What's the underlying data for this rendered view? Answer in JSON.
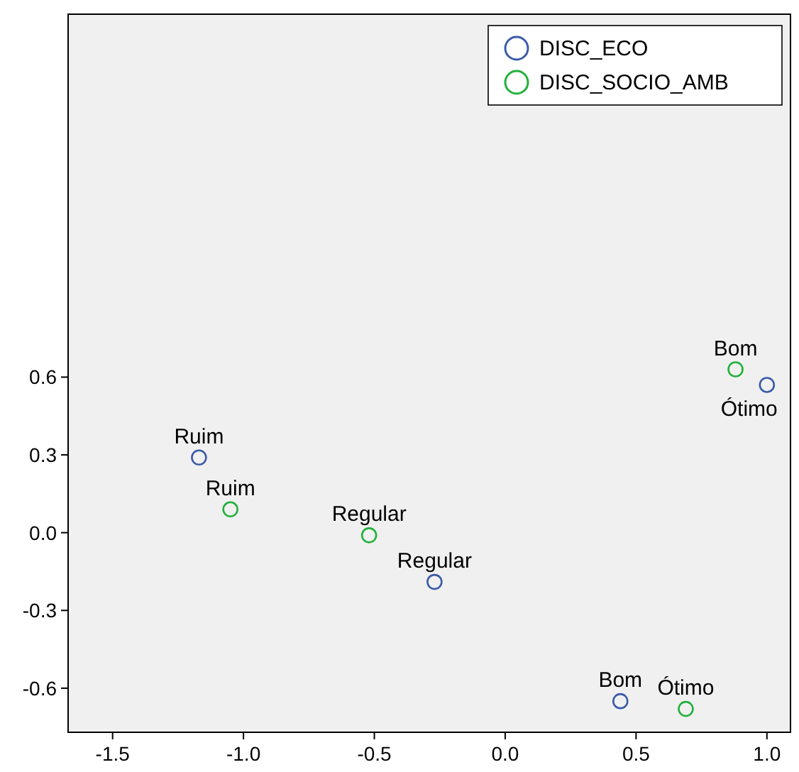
{
  "chart_data": {
    "type": "scatter",
    "marker": "circle",
    "legend": "top right",
    "grid": false,
    "xlim": [
      -1.67,
      1.09
    ],
    "ylim": [
      -0.77,
      2.0
    ],
    "xticks": [
      -1.5,
      {
        "value": -1,
        "label": "-1.0"
      },
      -0.5,
      {
        "value": 0,
        "label": "0.0"
      },
      0.5,
      {
        "value": 1,
        "label": "1.0"
      }
    ],
    "yticks": [
      -0.6,
      -0.3,
      {
        "value": 0,
        "label": "0.0"
      },
      0.3,
      0.6
    ],
    "series": [
      {
        "name": "DISC_ECO",
        "color": "#3a5ba8",
        "x": [
          -1.17,
          -0.27,
          0.44,
          1.0
        ],
        "values": [
          0.29,
          -0.19,
          -0.65,
          0.57
        ]
      },
      {
        "name": "DISC_SOCIO_AMB",
        "color": "#22b03c",
        "x": [
          -1.05,
          -0.52,
          0.88,
          0.69
        ],
        "values": [
          0.09,
          -0.01,
          0.63,
          -0.68
        ]
      }
    ],
    "annotations": [
      {
        "text": "Ruim",
        "x": -1.17,
        "y": 0.29
      },
      {
        "text": "Regular",
        "x": -0.27,
        "y": -0.19
      },
      {
        "text": "Bom",
        "x": 0.44,
        "y": -0.65
      },
      {
        "text": "Ruim",
        "x": -1.05,
        "y": 0.09
      },
      {
        "text": "Regular",
        "x": -0.52,
        "y": -0.01
      },
      {
        "text": "Bom",
        "x": 0.88,
        "y": 0.63
      },
      {
        "text": "Ótimo",
        "x": 1.0,
        "y": 0.57
      },
      {
        "text": "Ótimo",
        "x": 0.69,
        "y": -0.68
      }
    ]
  }
}
